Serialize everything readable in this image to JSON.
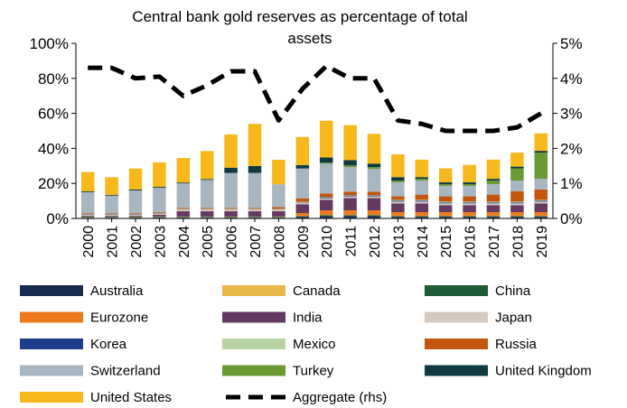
{
  "chart_data": {
    "type": "bar",
    "title_line1": "Central bank gold reserves as percentage of total",
    "title_line2": "assets",
    "y_left": {
      "min": 0,
      "max": 100,
      "step": 20,
      "ticks": [
        "0%",
        "20%",
        "40%",
        "60%",
        "80%",
        "100%"
      ]
    },
    "y_right": {
      "min": 0,
      "max": 5,
      "step": 1,
      "ticks": [
        "0%",
        "1%",
        "2%",
        "3%",
        "4%",
        "5%"
      ]
    },
    "categories": [
      "2000",
      "2001",
      "2002",
      "2003",
      "2004",
      "2005",
      "2006",
      "2007",
      "2008",
      "2009",
      "2010",
      "2011",
      "2012",
      "2013",
      "2014",
      "2015",
      "2016",
      "2017",
      "2018",
      "2019"
    ],
    "series": [
      {
        "name": "Australia",
        "color": "#172c4e",
        "values": [
          0.5,
          0.5,
          0.5,
          0.5,
          0.5,
          0.5,
          0.5,
          0.5,
          0.5,
          1,
          1.5,
          1.5,
          1.5,
          1,
          1,
          1,
          1,
          1,
          1,
          1
        ]
      },
      {
        "name": "Canada",
        "color": "#e6b94a",
        "values": [
          0.3,
          0.3,
          0.3,
          0.3,
          0.3,
          0.3,
          0.3,
          0.3,
          0.3,
          0.3,
          0.3,
          0.3,
          0.3,
          0.3,
          0.3,
          0.3,
          0.3,
          0.3,
          0.3,
          0.3
        ]
      },
      {
        "name": "China",
        "color": "#1e5b35",
        "values": [
          0.3,
          0.3,
          0.3,
          0.3,
          0.3,
          0.3,
          0.3,
          0.3,
          0.3,
          0.3,
          0.3,
          0.3,
          0.3,
          0.3,
          0.3,
          0.3,
          0.3,
          0.3,
          0.3,
          0.3
        ]
      },
      {
        "name": "Eurozone",
        "color": "#ec7a1d",
        "values": [
          0,
          0,
          0,
          0,
          0,
          0,
          0,
          0,
          0,
          1.5,
          2.5,
          2.5,
          2.5,
          2,
          2,
          2,
          2,
          2,
          2,
          2
        ]
      },
      {
        "name": "India",
        "color": "#653a60",
        "values": [
          0.5,
          0.5,
          0.5,
          1,
          3,
          3,
          3,
          3,
          3,
          5,
          6,
          7,
          7,
          5,
          5,
          4,
          4,
          4,
          4,
          5
        ]
      },
      {
        "name": "Japan",
        "color": "#d5c9bf",
        "values": [
          0.5,
          0.5,
          0.5,
          0.5,
          1,
          1,
          1,
          1,
          1,
          1,
          1,
          1,
          1,
          1,
          1,
          1,
          1,
          1,
          1,
          1
        ]
      },
      {
        "name": "Korea",
        "color": "#1b3d8a",
        "values": [
          0.2,
          0.2,
          0.2,
          0.2,
          0.2,
          0.2,
          0.2,
          0.2,
          0.2,
          0.2,
          0.5,
          0.5,
          0.5,
          0.5,
          0.5,
          0.5,
          0.5,
          0.5,
          0.5,
          0.5
        ]
      },
      {
        "name": "Mexico",
        "color": "#b8d4a5",
        "values": [
          0.2,
          0.2,
          0.2,
          0.2,
          0.2,
          0.2,
          0.2,
          0.2,
          0.2,
          0.2,
          0.2,
          0.2,
          0.2,
          0.5,
          0.5,
          0.5,
          0.5,
          0.5,
          0.5,
          0.5
        ]
      },
      {
        "name": "Russia",
        "color": "#c4550e",
        "values": [
          0.5,
          0.5,
          0.5,
          0.5,
          0.5,
          0.5,
          0.5,
          0.5,
          1,
          2,
          2,
          2,
          2,
          2,
          3,
          3,
          3,
          4,
          6,
          6
        ]
      },
      {
        "name": "Switzerland",
        "color": "#a7b6c1",
        "values": [
          12,
          10,
          13,
          14,
          14,
          16,
          20,
          20,
          13,
          17,
          17,
          14,
          13,
          8,
          8,
          6,
          6,
          6,
          6,
          6
        ]
      },
      {
        "name": "Turkey",
        "color": "#6a9a34",
        "values": [
          0,
          0,
          0,
          0,
          0,
          0,
          0,
          0,
          0,
          0,
          0.5,
          1,
          1,
          1,
          1,
          1,
          1,
          2,
          7,
          15
        ]
      },
      {
        "name": "United Kingdom",
        "color": "#0f3b40",
        "values": [
          0.5,
          0.5,
          0.5,
          0.5,
          0.5,
          0.5,
          3,
          4,
          0,
          2,
          3,
          3,
          2,
          2,
          1,
          1,
          1,
          1,
          1,
          1
        ]
      },
      {
        "name": "United States",
        "color": "#f7b81b",
        "values": [
          11,
          10,
          12,
          14,
          14,
          16,
          19,
          24,
          14,
          16,
          21,
          20,
          17,
          13,
          10,
          8,
          10,
          11,
          8,
          10
        ]
      }
    ],
    "line": {
      "name": "Aggregate (rhs)",
      "color": "#000000",
      "axis": "right",
      "values": [
        4.3,
        4.3,
        4.0,
        4.05,
        3.5,
        3.8,
        4.2,
        4.2,
        2.8,
        3.7,
        4.35,
        4.0,
        4.0,
        2.8,
        2.7,
        2.5,
        2.5,
        2.5,
        2.6,
        3.0
      ]
    },
    "legend_position": "bottom",
    "grid": false
  }
}
